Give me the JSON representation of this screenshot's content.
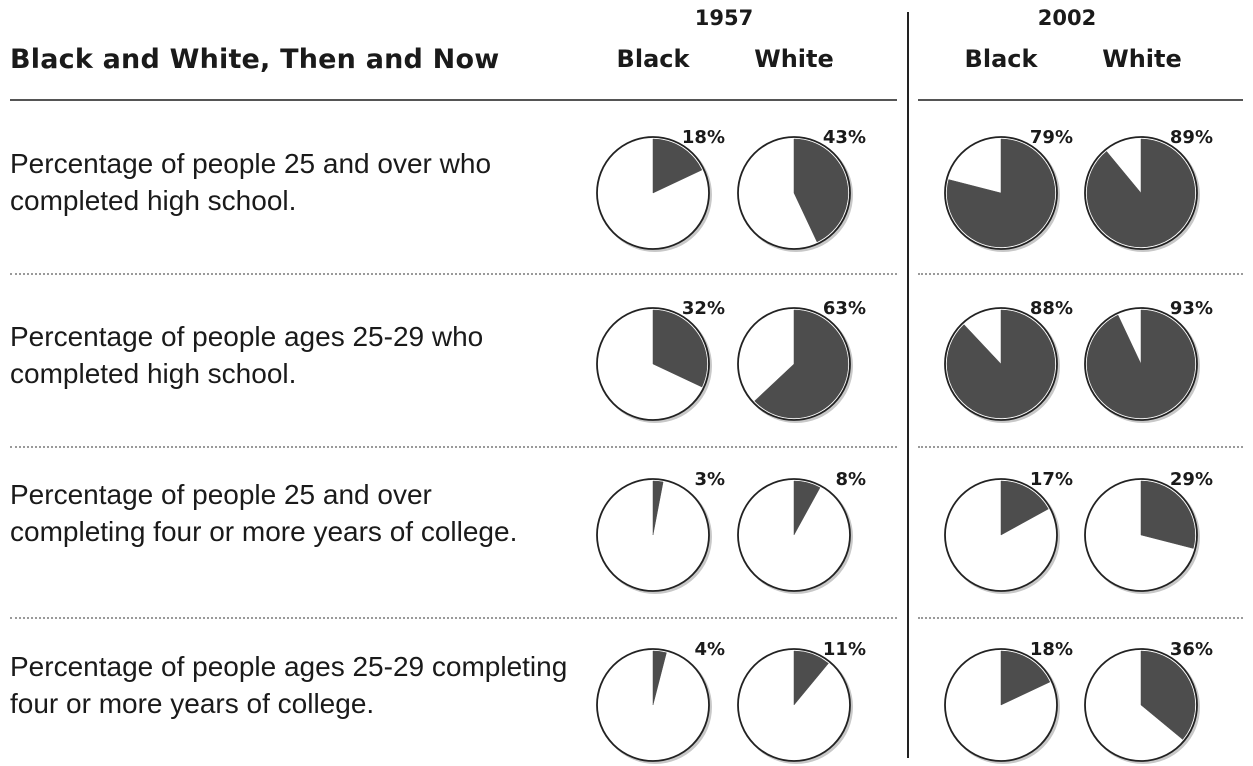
{
  "title": "Black and White, Then and Now",
  "groups": [
    {
      "year": "1957",
      "columns": [
        "Black",
        "White"
      ]
    },
    {
      "year": "2002",
      "columns": [
        "Black",
        "White"
      ]
    }
  ],
  "rows": [
    {
      "label": "Percentage of people 25 and over who completed high school."
    },
    {
      "label": "Percentage of people ages 25-29 who completed high school."
    },
    {
      "label": "Percentage of people 25 and over completing four or more years of college."
    },
    {
      "label": "Percentage of people ages 25-29 completing four or more years of college."
    }
  ],
  "colors": {
    "slice": "#4d4d4d",
    "pie_fill": "#ffffff",
    "outline": "#222222",
    "divider": "#222222"
  },
  "chart_data": {
    "type": "pie",
    "title": "Black and White, Then and Now",
    "categories": [
      "1957 Black",
      "1957 White",
      "2002 Black",
      "2002 White"
    ],
    "series": [
      {
        "name": "Percentage of people 25 and over who completed high school.",
        "values": [
          18,
          43,
          79,
          89
        ]
      },
      {
        "name": "Percentage of people ages 25-29 who completed high school.",
        "values": [
          32,
          63,
          88,
          93
        ]
      },
      {
        "name": "Percentage of people 25 and over completing four or more years of college.",
        "values": [
          3,
          8,
          17,
          29
        ]
      },
      {
        "name": "Percentage of people ages 25-29 completing four or more years of college.",
        "values": [
          4,
          11,
          18,
          36
        ]
      }
    ],
    "value_labels": [
      [
        "18%",
        "43%",
        "79%",
        "89%"
      ],
      [
        "32%",
        "63%",
        "88%",
        "93%"
      ],
      [
        "3%",
        "8%",
        "17%",
        "29%"
      ],
      [
        "4%",
        "11%",
        "18%",
        "36%"
      ]
    ],
    "unit": "%"
  }
}
